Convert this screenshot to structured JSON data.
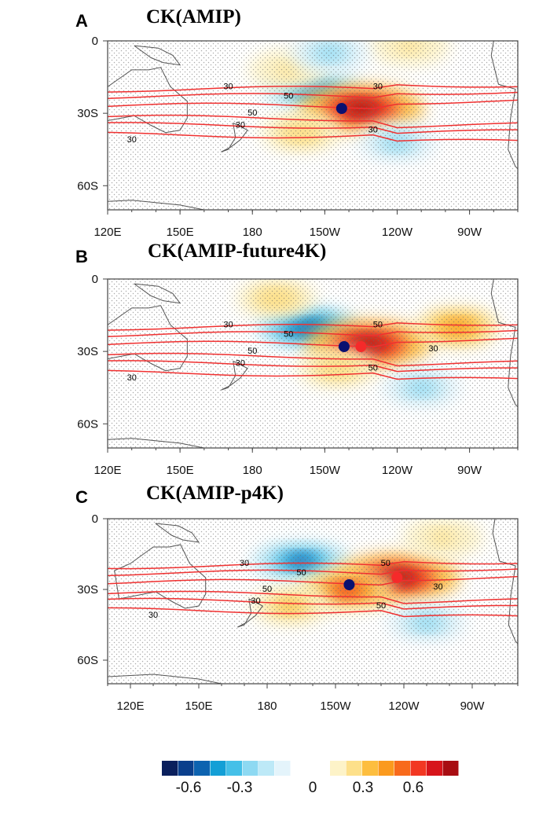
{
  "colorbar": {
    "labels": [
      "-0.6",
      "-0.3",
      "0",
      "0.3",
      "0.6"
    ],
    "label_values": [
      -0.6,
      -0.3,
      0,
      0.3,
      0.6
    ],
    "negative_colors": [
      "#0a1f5c",
      "#0b3f8c",
      "#0d63b0",
      "#139fd6",
      "#45c0e8",
      "#8dd9f2",
      "#bde9f7",
      "#e4f4fb"
    ],
    "positive_colors": [
      "#fdf3c8",
      "#fde08a",
      "#fdbe3f",
      "#fb9a1e",
      "#f86a1c",
      "#f23722",
      "#d7141b",
      "#a80d12"
    ]
  },
  "chart_data": [
    {
      "type": "heatmap",
      "panel": "A",
      "title": "CK(AMIP)",
      "xlabel": "",
      "ylabel": "",
      "x_ticks": [
        "120E",
        "150E",
        "180",
        "150W",
        "120W",
        "90W"
      ],
      "x_tick_lon": [
        120,
        150,
        180,
        210,
        240,
        270
      ],
      "y_ticks": [
        "0",
        "30S",
        "60S"
      ],
      "y_tick_lat": [
        0,
        -30,
        -60
      ],
      "xlim": [
        120,
        290
      ],
      "ylim": [
        -70,
        0
      ],
      "contour_labels": [
        "30",
        "50",
        "50",
        "30",
        "30",
        "30",
        "30"
      ],
      "contour_levels": [
        30,
        50
      ],
      "shading_blobs": [
        {
          "lon": 205,
          "lat": -20,
          "value": -0.5
        },
        {
          "lon": 225,
          "lat": -28,
          "value": 0.8
        },
        {
          "lon": 195,
          "lat": -12,
          "value": 0.12
        },
        {
          "lon": 245,
          "lat": -2,
          "value": 0.1
        },
        {
          "lon": 212,
          "lat": -5,
          "value": -0.2
        },
        {
          "lon": 240,
          "lat": -42,
          "value": -0.2
        },
        {
          "lon": 200,
          "lat": -38,
          "value": 0.15
        }
      ],
      "markers": [
        {
          "color": "navy",
          "lon": 217,
          "lat": -28
        }
      ]
    },
    {
      "type": "heatmap",
      "panel": "B",
      "title": "CK(AMIP-future4K)",
      "xlabel": "",
      "ylabel": "",
      "x_ticks": [
        "120E",
        "150E",
        "180",
        "150W",
        "120W",
        "90W"
      ],
      "x_tick_lon": [
        120,
        150,
        180,
        210,
        240,
        270
      ],
      "y_ticks": [
        "0",
        "30S",
        "60S"
      ],
      "y_tick_lat": [
        0,
        -30,
        -60
      ],
      "xlim": [
        120,
        290
      ],
      "ylim": [
        -70,
        0
      ],
      "contour_labels": [
        "30",
        "50",
        "50",
        "50",
        "50",
        "30",
        "30",
        "30"
      ],
      "contour_levels": [
        30,
        50
      ],
      "shading_blobs": [
        {
          "lon": 203,
          "lat": -20,
          "value": -0.6
        },
        {
          "lon": 228,
          "lat": -27,
          "value": 0.85
        },
        {
          "lon": 265,
          "lat": -20,
          "value": 0.35
        },
        {
          "lon": 190,
          "lat": -8,
          "value": 0.15
        },
        {
          "lon": 250,
          "lat": -45,
          "value": -0.2
        },
        {
          "lon": 215,
          "lat": -37,
          "value": 0.15
        }
      ],
      "markers": [
        {
          "color": "navy",
          "lon": 218,
          "lat": -28
        },
        {
          "color": "red",
          "lon": 225,
          "lat": -28
        }
      ]
    },
    {
      "type": "heatmap",
      "panel": "C",
      "title": "CK(AMIP-p4K)",
      "xlabel": "",
      "ylabel": "",
      "x_ticks": [
        "120E",
        "150E",
        "180",
        "150W",
        "120W",
        "90W"
      ],
      "x_tick_lon": [
        120,
        150,
        180,
        210,
        240,
        270
      ],
      "y_ticks": [
        "0",
        "30S",
        "60S"
      ],
      "y_tick_lat": [
        0,
        -30,
        -60
      ],
      "xlim": [
        110,
        290
      ],
      "ylim": [
        -70,
        0
      ],
      "contour_labels": [
        "30",
        "50",
        "50",
        "50",
        "50",
        "30",
        "30",
        "30"
      ],
      "contour_levels": [
        30,
        50
      ],
      "shading_blobs": [
        {
          "lon": 195,
          "lat": -18,
          "value": -0.5
        },
        {
          "lon": 237,
          "lat": -25,
          "value": 0.75
        },
        {
          "lon": 215,
          "lat": -30,
          "value": 0.5
        },
        {
          "lon": 257,
          "lat": -8,
          "value": 0.1
        },
        {
          "lon": 250,
          "lat": -44,
          "value": -0.2
        },
        {
          "lon": 190,
          "lat": -37,
          "value": 0.2
        }
      ],
      "markers": [
        {
          "color": "navy",
          "lon": 216,
          "lat": -28
        },
        {
          "color": "red",
          "lon": 237,
          "lat": -25
        }
      ]
    }
  ]
}
